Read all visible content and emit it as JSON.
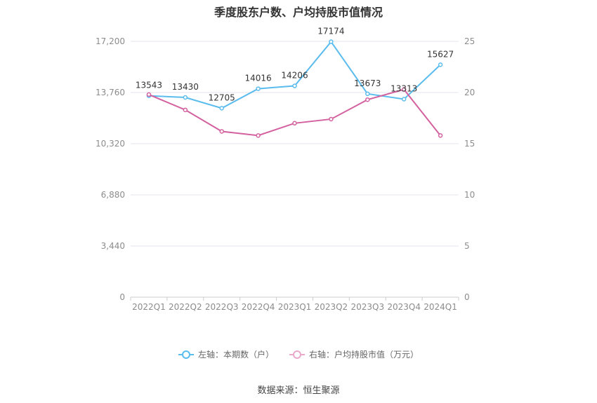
{
  "chart_data": {
    "type": "line",
    "title": "季度股东户数、户均持股市值情况",
    "categories": [
      "2022Q1",
      "2022Q2",
      "2022Q3",
      "2022Q4",
      "2023Q1",
      "2023Q2",
      "2023Q3",
      "2023Q4",
      "2024Q1"
    ],
    "left_axis": {
      "ticks": [
        "0",
        "3,440",
        "6,880",
        "10,320",
        "13,760",
        "17,200"
      ],
      "ylim": [
        0,
        17200
      ]
    },
    "right_axis": {
      "ticks": [
        "0",
        "5",
        "10",
        "15",
        "20",
        "25"
      ],
      "ylim": [
        0,
        25
      ]
    },
    "series": [
      {
        "name": "左轴：本期数（户）",
        "axis": "left",
        "color": "#5bbcee",
        "values": [
          13543,
          13430,
          12705,
          14016,
          14206,
          17174,
          13673,
          13313,
          15627
        ],
        "labels": [
          "13543",
          "13430",
          "12705",
          "14016",
          "14206",
          "17174",
          "13673",
          "13313",
          "15627"
        ]
      },
      {
        "name": "右轴：户均持股市值（万元）",
        "axis": "right",
        "color": "#d4619f",
        "values": [
          19.8,
          18.3,
          16.2,
          15.8,
          17.0,
          17.4,
          19.3,
          20.3,
          15.8
        ]
      }
    ],
    "grid": true,
    "legend_position": "bottom"
  },
  "source": "数据来源：恒生聚源"
}
